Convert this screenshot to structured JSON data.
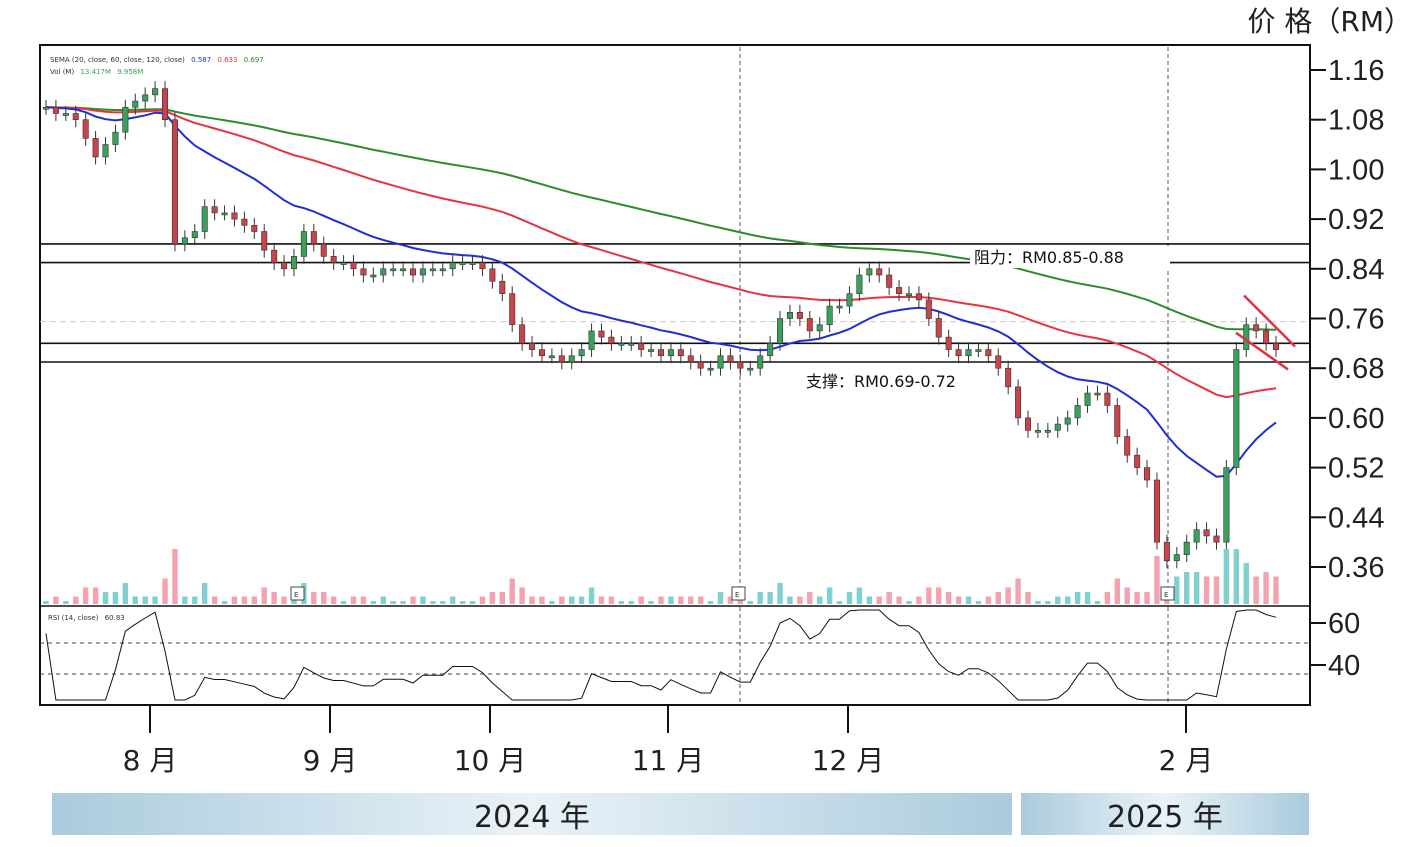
{
  "price_unit_label": "价 格（RM）",
  "year_bands": [
    "2024 年",
    "2025 年"
  ],
  "month_labels": [
    "8 月",
    "9 月",
    "10 月",
    "11 月",
    "12 月",
    "2 月"
  ],
  "legend": {
    "ema_line": "SEMA (20, close, 60, close, 120, close)",
    "ema_values": [
      "0.587",
      "0.633",
      "0.697"
    ],
    "vol_line": "Vol (M)",
    "vol_values": [
      "13.417M",
      "9.958M"
    ],
    "rsi_line": "RSI (14, close)",
    "rsi_value": "60.83"
  },
  "annotations": {
    "resistance": "阻力：RM0.85-0.88",
    "support": "支撑：RM0.69-0.72",
    "earnings_marker": "E"
  },
  "colors": {
    "ema20": "#1f2fd1",
    "ema60": "#e8333f",
    "ema120": "#2e8b2e",
    "up_candle": "#3aa05a",
    "down_candle": "#c9444a",
    "volume_up": "#7fd0cf",
    "volume_down": "#f2a3ad",
    "wedge": "#e0304a"
  },
  "chart_data": {
    "type": "candlestick",
    "y_axis_ticks": [
      "1.16",
      "1.08",
      "1.00",
      "0.92",
      "0.84",
      "0.76",
      "0.68",
      "0.60",
      "0.52",
      "0.44",
      "0.36"
    ],
    "ylim": [
      0.3,
      1.2
    ],
    "rsi_ticks": [
      "60",
      "40"
    ],
    "horizontal_levels": [
      0.88,
      0.85,
      0.72,
      0.69
    ],
    "x_months": [
      "8 月",
      "9 月",
      "10 月",
      "11 月",
      "12 月",
      "2 月"
    ],
    "closes": [
      1.1,
      1.09,
      1.09,
      1.08,
      1.05,
      1.02,
      1.04,
      1.06,
      1.1,
      1.11,
      1.12,
      1.13,
      1.08,
      0.88,
      0.89,
      0.9,
      0.94,
      0.93,
      0.93,
      0.92,
      0.91,
      0.9,
      0.87,
      0.85,
      0.84,
      0.86,
      0.9,
      0.88,
      0.86,
      0.85,
      0.85,
      0.84,
      0.83,
      0.83,
      0.84,
      0.84,
      0.84,
      0.83,
      0.84,
      0.84,
      0.84,
      0.85,
      0.85,
      0.85,
      0.84,
      0.82,
      0.8,
      0.75,
      0.72,
      0.71,
      0.7,
      0.7,
      0.69,
      0.7,
      0.71,
      0.74,
      0.73,
      0.72,
      0.72,
      0.72,
      0.71,
      0.71,
      0.7,
      0.71,
      0.7,
      0.69,
      0.68,
      0.68,
      0.7,
      0.69,
      0.68,
      0.68,
      0.7,
      0.72,
      0.76,
      0.77,
      0.76,
      0.74,
      0.75,
      0.78,
      0.78,
      0.8,
      0.83,
      0.84,
      0.83,
      0.81,
      0.8,
      0.8,
      0.79,
      0.76,
      0.73,
      0.71,
      0.7,
      0.71,
      0.71,
      0.7,
      0.68,
      0.65,
      0.6,
      0.58,
      0.58,
      0.58,
      0.59,
      0.6,
      0.62,
      0.64,
      0.64,
      0.62,
      0.57,
      0.54,
      0.52,
      0.5,
      0.4,
      0.37,
      0.38,
      0.4,
      0.42,
      0.41,
      0.4,
      0.52,
      0.71,
      0.75,
      0.74,
      0.72,
      0.71
    ],
    "ema20_end": 0.587,
    "ema60_end": 0.633,
    "ema120_end": 0.697,
    "rsi_end": 60.83
  }
}
